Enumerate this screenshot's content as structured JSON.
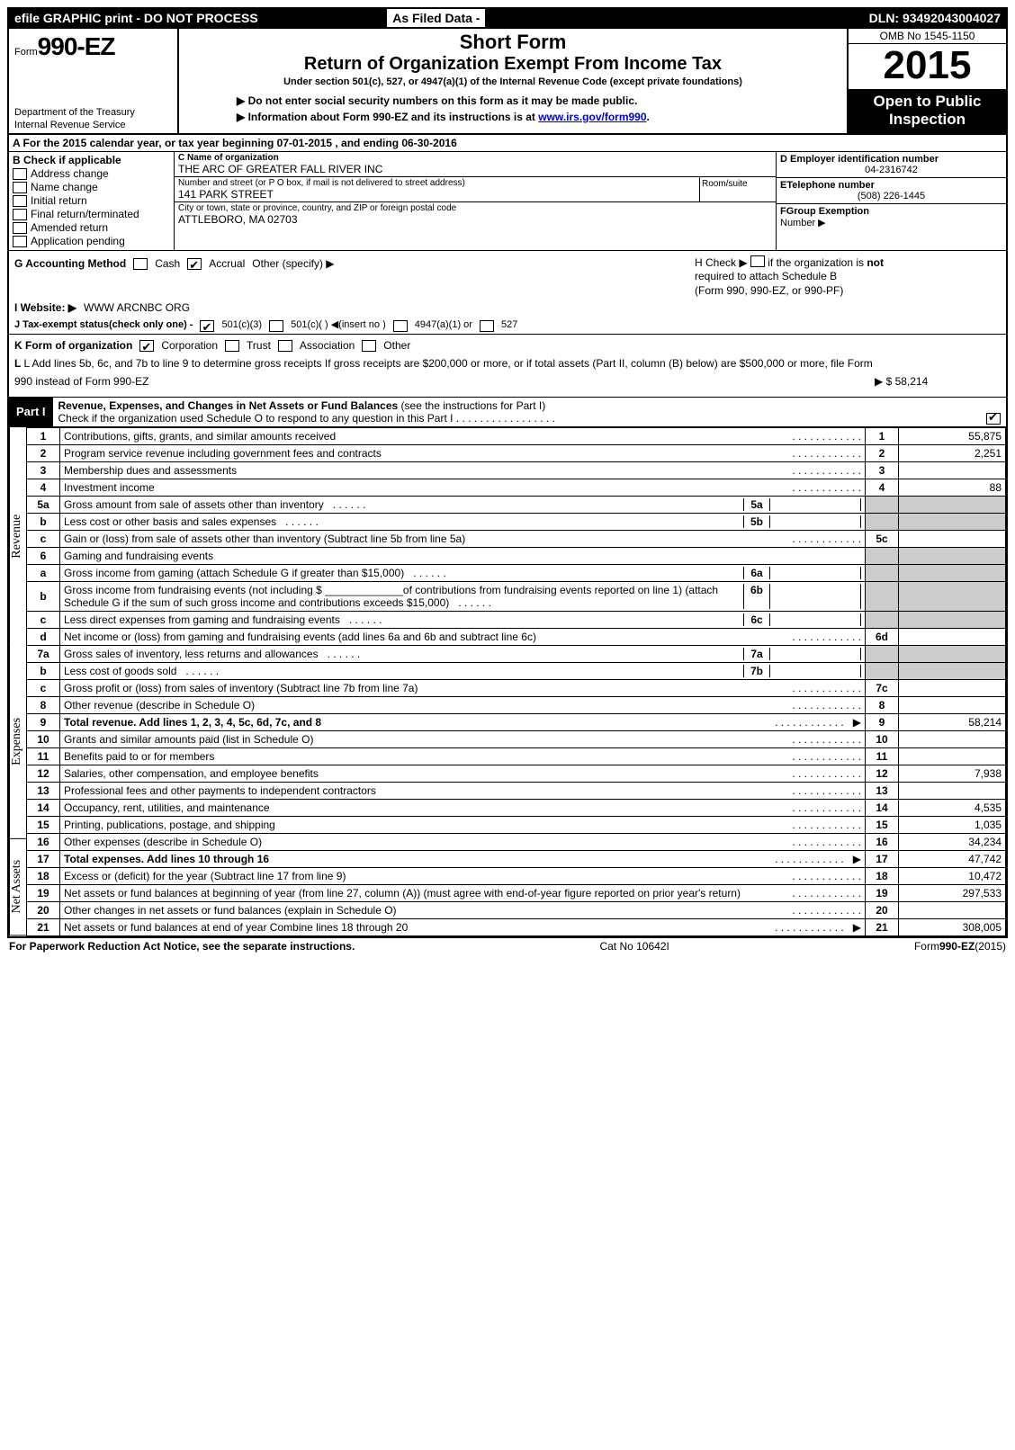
{
  "topbar": {
    "efile": "efile GRAPHIC print - DO NOT PROCESS",
    "asfiled": "As Filed Data -",
    "dln": "DLN: 93492043004027"
  },
  "header": {
    "form_prefix": "Form",
    "form_no": "990-EZ",
    "dept1": "Department of the Treasury",
    "dept2": "Internal Revenue Service",
    "title1": "Short Form",
    "title2": "Return of Organization Exempt From Income Tax",
    "subtitle": "Under section 501(c), 527, or 4947(a)(1) of the Internal Revenue Code (except private foundations)",
    "note1": "▶ Do not enter social security numbers on this form as it may be made public.",
    "note2_pre": "▶ Information about Form 990-EZ and its instructions is at ",
    "note2_link": "www.irs.gov/form990",
    "note2_post": ".",
    "omb": "OMB No 1545-1150",
    "year": "2015",
    "inspect1": "Open to Public",
    "inspect2": "Inspection"
  },
  "secA": "A  For the 2015 calendar year, or tax year beginning 07-01-2015                      , and ending 06-30-2016",
  "secB": {
    "title": "B  Check if applicable",
    "items": [
      "Address change",
      "Name change",
      "Initial return",
      "Final return/terminated",
      "Amended return",
      "Application pending"
    ]
  },
  "secC": {
    "name_lbl": "C Name of organization",
    "name": "THE ARC OF GREATER FALL RIVER INC",
    "street_lbl": "Number and street (or P O box, if mail is not delivered to street address)",
    "room_lbl": "Room/suite",
    "street": "141 PARK STREET",
    "city_lbl": "City or town, state or province, country, and ZIP or foreign postal code",
    "city": "ATTLEBORO, MA  02703"
  },
  "secD": {
    "lbl": "D Employer identification number",
    "val": "04-2316742"
  },
  "secE": {
    "lbl": "ETelephone number",
    "val": "(508) 226-1445"
  },
  "secF": {
    "lbl": "FGroup Exemption",
    "lbl2": "Number   ▶"
  },
  "secG": {
    "lbl": "G Accounting Method",
    "cash": "Cash",
    "accrual": "Accrual",
    "other": "Other (specify) ▶"
  },
  "secH": {
    "line1_a": "H   Check ▶",
    "line1_b": "if the organization is ",
    "line1_c": "not",
    "line2": "required to attach Schedule B",
    "line3": "(Form 990, 990-EZ, or 990-PF)"
  },
  "secI": {
    "lbl": "I Website: ▶",
    "val": "WWW ARCNBC ORG"
  },
  "secJ": "J Tax-exempt status(check only one) -",
  "secJ_opts": {
    "a": "501(c)(3)",
    "b": "501(c)( )  ◀(insert no )",
    "c": "4947(a)(1) or",
    "d": "527"
  },
  "secK": {
    "lbl": "K Form of organization",
    "opts": [
      "Corporation",
      "Trust",
      "Association",
      "Other"
    ]
  },
  "secL": {
    "text": "L Add lines 5b, 6c, and 7b to line 9 to determine gross receipts  If gross receipts are $200,000 or more, or if total assets (Part II, column (B) below) are $500,000 or more, file Form 990 instead of Form 990-EZ",
    "amt_prefix": "▶ $ ",
    "amt": "58,214"
  },
  "part1": {
    "tag": "Part I",
    "title_b": "Revenue, Expenses, and Changes in Net Assets or Fund Balances ",
    "title": "(see the instructions for Part I)",
    "sub": "Check if the organization used Schedule O to respond to any question in this Part I  .  .  .  .  .  .  .  .  .  .  .  .  .  .  .  .  ."
  },
  "lines": {
    "l1": {
      "n": "1",
      "d": "Contributions, gifts, grants, and similar amounts received",
      "a": "55,875"
    },
    "l2": {
      "n": "2",
      "d": "Program service revenue including government fees and contracts",
      "a": "2,251"
    },
    "l3": {
      "n": "3",
      "d": "Membership dues and assessments",
      "a": ""
    },
    "l4": {
      "n": "4",
      "d": "Investment income",
      "a": "88"
    },
    "l5a": {
      "n": "5a",
      "d": "Gross amount from sale of assets other than inventory",
      "sn": "5a"
    },
    "l5b": {
      "n": "b",
      "d": "Less  cost or other basis and sales expenses",
      "sn": "5b"
    },
    "l5c": {
      "n": "c",
      "d": "Gain or (loss) from sale of assets other than inventory (Subtract line 5b from line 5a)",
      "rn": "5c",
      "a": ""
    },
    "l6": {
      "n": "6",
      "d": "Gaming and fundraising events"
    },
    "l6a": {
      "n": "a",
      "d": "Gross income from gaming (attach Schedule G if greater than $15,000)",
      "sn": "6a"
    },
    "l6b": {
      "n": "b",
      "d": "Gross income from fundraising events (not including $ _____________of contributions from fundraising events reported on line 1) (attach Schedule G if the sum of such gross income and contributions exceeds $15,000)",
      "sn": "6b"
    },
    "l6c": {
      "n": "c",
      "d": "Less  direct expenses from gaming and fundraising events",
      "sn": "6c"
    },
    "l6d": {
      "n": "d",
      "d": "Net income or (loss) from gaming and fundraising events (add lines 6a and 6b and subtract line 6c)",
      "rn": "6d",
      "a": ""
    },
    "l7a": {
      "n": "7a",
      "d": "Gross sales of inventory, less returns and allowances",
      "sn": "7a"
    },
    "l7b": {
      "n": "b",
      "d": "Less  cost of goods sold",
      "sn": "7b"
    },
    "l7c": {
      "n": "c",
      "d": "Gross profit or (loss) from sales of inventory (Subtract line 7b from line 7a)",
      "rn": "7c",
      "a": ""
    },
    "l8": {
      "n": "8",
      "d": "Other revenue (describe in Schedule O)",
      "rn": "8",
      "a": ""
    },
    "l9": {
      "n": "9",
      "d": "Total revenue. Add lines 1, 2, 3, 4, 5c, 6d, 7c, and 8",
      "rn": "9",
      "a": "58,214",
      "bold": true,
      "arrow": true
    },
    "l10": {
      "n": "10",
      "d": "Grants and similar amounts paid (list in Schedule O)",
      "rn": "10",
      "a": ""
    },
    "l11": {
      "n": "11",
      "d": "Benefits paid to or for members",
      "rn": "11",
      "a": ""
    },
    "l12": {
      "n": "12",
      "d": "Salaries, other compensation, and employee benefits",
      "rn": "12",
      "a": "7,938"
    },
    "l13": {
      "n": "13",
      "d": "Professional fees and other payments to independent contractors",
      "rn": "13",
      "a": ""
    },
    "l14": {
      "n": "14",
      "d": "Occupancy, rent, utilities, and maintenance",
      "rn": "14",
      "a": "4,535"
    },
    "l15": {
      "n": "15",
      "d": "Printing, publications, postage, and shipping",
      "rn": "15",
      "a": "1,035"
    },
    "l16": {
      "n": "16",
      "d": "Other expenses (describe in Schedule O)",
      "rn": "16",
      "a": "34,234"
    },
    "l17": {
      "n": "17",
      "d": "Total expenses. Add lines 10 through 16",
      "rn": "17",
      "a": "47,742",
      "bold": true,
      "arrow": true
    },
    "l18": {
      "n": "18",
      "d": "Excess or (deficit) for the year (Subtract line 17 from line 9)",
      "rn": "18",
      "a": "10,472"
    },
    "l19": {
      "n": "19",
      "d": "Net assets or fund balances at beginning of year (from line 27, column (A)) (must agree with end-of-year figure reported on prior year's return)",
      "rn": "19",
      "a": "297,533"
    },
    "l20": {
      "n": "20",
      "d": "Other changes in net assets or fund balances (explain in Schedule O)",
      "rn": "20",
      "a": ""
    },
    "l21": {
      "n": "21",
      "d": "Net assets or fund balances at end of year Combine lines 18 through 20",
      "rn": "21",
      "a": "308,005",
      "arrow": true
    }
  },
  "sidelabels": {
    "rev": "Revenue",
    "exp": "Expenses",
    "net": "Net Assets"
  },
  "footer": {
    "left": "For Paperwork Reduction Act Notice, see the separate instructions.",
    "mid": "Cat No 10642I",
    "right": "Form",
    "right_b": "990-EZ",
    "right_y": "(2015)"
  }
}
